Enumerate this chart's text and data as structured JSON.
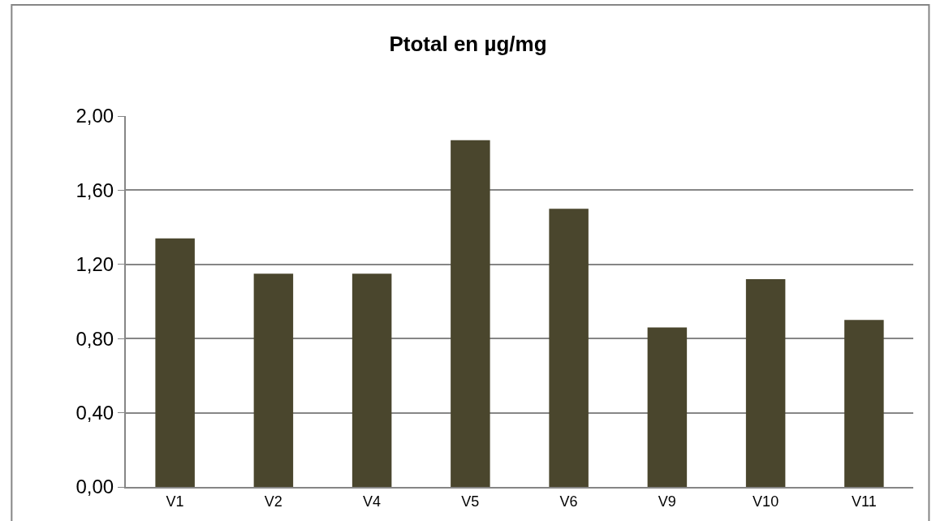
{
  "chart_data": {
    "type": "bar",
    "title": "Ptotal en µg/mg",
    "categories": [
      "V1",
      "V2",
      "V4",
      "V5",
      "V6",
      "V9",
      "V10",
      "V11"
    ],
    "values": [
      1.34,
      1.15,
      1.15,
      1.87,
      1.5,
      0.86,
      1.12,
      0.9
    ],
    "color": "#4a462d",
    "ylim": [
      0,
      2
    ],
    "yticks": [
      {
        "value": 0,
        "label": "0,00"
      },
      {
        "value": 0.4,
        "label": "0,40"
      },
      {
        "value": 0.8,
        "label": "0,80"
      },
      {
        "value": 1.2,
        "label": "1,20"
      },
      {
        "value": 1.6,
        "label": "1,60"
      },
      {
        "value": 2,
        "label": "2,00"
      }
    ],
    "grid": "y",
    "legend": false
  }
}
